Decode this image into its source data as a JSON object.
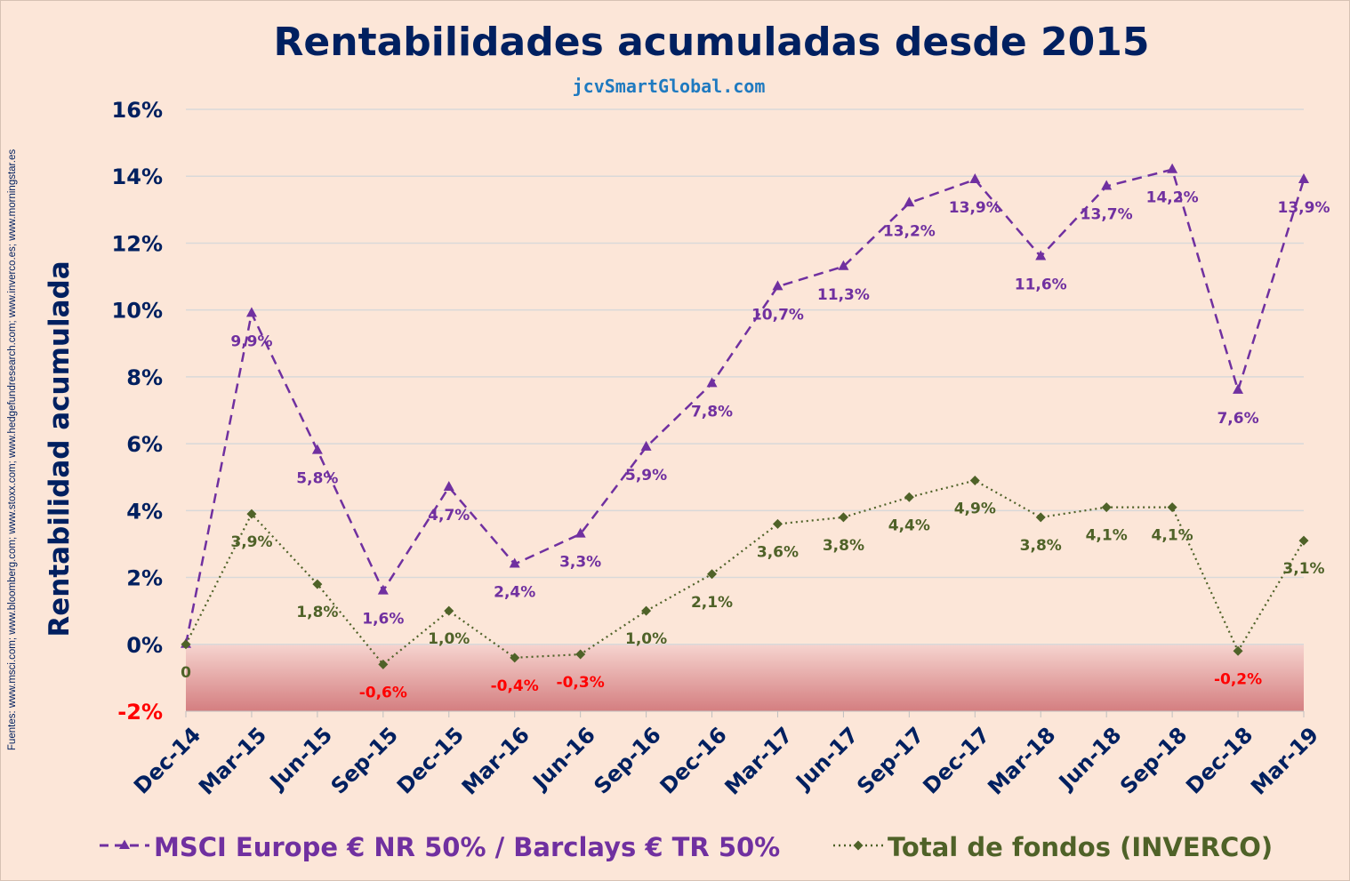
{
  "chart_data": {
    "type": "line",
    "title": "Rentabilidades acumuladas desde 2015",
    "subtitle": "jcvSmartGlobal.com",
    "ylabel": "Rentabilidad acumulada",
    "xlabel": "",
    "source_note": "Fuentes: www.msci.com; www.bloomberg.com; www.stoxx.com; www.hedgefundresearch.com; www.inverco.es; www.morningstar.es",
    "ylim": [
      -2,
      16
    ],
    "yticks": [
      -2,
      0,
      2,
      4,
      6,
      8,
      10,
      12,
      14,
      16
    ],
    "ytick_labels": [
      "-2%",
      "0%",
      "2%",
      "4%",
      "6%",
      "8%",
      "10%",
      "12%",
      "14%",
      "16%"
    ],
    "grid": true,
    "legend_position": "bottom",
    "negative_band": [
      -2,
      0
    ],
    "categories": [
      "Dec-14",
      "Mar-15",
      "Jun-15",
      "Sep-15",
      "Dec-15",
      "Mar-16",
      "Jun-16",
      "Sep-16",
      "Dec-16",
      "Mar-17",
      "Jun-17",
      "Sep-17",
      "Dec-17",
      "Mar-18",
      "Jun-18",
      "Sep-18",
      "Dec-18",
      "Mar-19"
    ],
    "series": [
      {
        "name": "MSCI Europe € NR 50% / Barclays € TR 50%",
        "color": "#7030a0",
        "marker": "triangle",
        "dash": "dashed",
        "values": [
          0,
          9.9,
          5.8,
          1.6,
          4.7,
          2.4,
          3.3,
          5.9,
          7.8,
          10.7,
          11.3,
          13.2,
          13.9,
          11.6,
          13.7,
          14.2,
          7.6,
          13.9
        ],
        "labels": [
          "",
          "9,9%",
          "5,8%",
          "1,6%",
          "4,7%",
          "2,4%",
          "3,3%",
          "5,9%",
          "7,8%",
          "10,7%",
          "11,3%",
          "13,2%",
          "13,9%",
          "11,6%",
          "13,7%",
          "14,2%",
          "7,6%",
          "13,9%"
        ]
      },
      {
        "name": "Total de fondos (INVERCO)",
        "color": "#4f6228",
        "marker": "diamond",
        "dash": "dotted",
        "values": [
          0,
          3.9,
          1.8,
          -0.6,
          1.0,
          -0.4,
          -0.3,
          1.0,
          2.1,
          3.6,
          3.8,
          4.4,
          4.9,
          3.8,
          4.1,
          4.1,
          -0.2,
          3.1
        ],
        "labels": [
          "0",
          "3,9%",
          "1,8%",
          "-0,6%",
          "1,0%",
          "-0,4%",
          "-0,3%",
          "1,0%",
          "2,1%",
          "3,6%",
          "3,8%",
          "4,4%",
          "4,9%",
          "3,8%",
          "4,1%",
          "4,1%",
          "-0,2%",
          "3,1%"
        ]
      }
    ],
    "colors": {
      "axis_text": "#002060",
      "negative_label": "#ff0000",
      "subtitle": "#1f7ac0",
      "grid": "#d9d9d9"
    }
  }
}
